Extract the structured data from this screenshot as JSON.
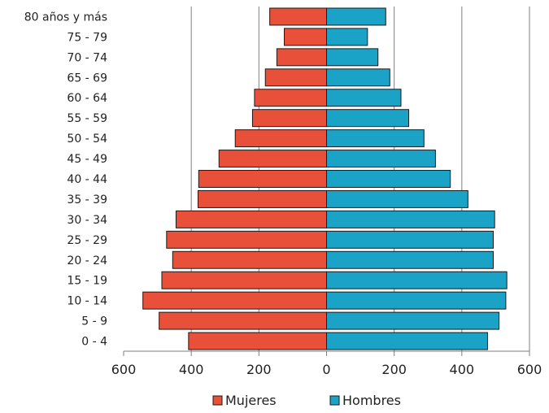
{
  "chart_data": {
    "type": "bar",
    "orientation": "horizontal",
    "layout": "population-pyramid",
    "categories": [
      "0 - 4",
      "5 - 9",
      "10 - 14",
      "15 - 19",
      "20 - 24",
      "25 - 29",
      "30 - 34",
      "35 - 39",
      "40 - 44",
      "45 - 49",
      "50 - 54",
      "55 - 59",
      "60 - 64",
      "65 - 69",
      "70 - 74",
      "75 - 79",
      "80 años y más"
    ],
    "series": [
      {
        "name": "Mujeres",
        "color": "#e8503a",
        "side": "left",
        "values": [
          408,
          495,
          543,
          487,
          455,
          473,
          445,
          380,
          378,
          318,
          270,
          219,
          213,
          181,
          147,
          125,
          168
        ]
      },
      {
        "name": "Hombres",
        "color": "#1aa3c7",
        "side": "right",
        "values": [
          476,
          510,
          530,
          533,
          493,
          493,
          497,
          418,
          366,
          322,
          288,
          243,
          220,
          187,
          152,
          121,
          175
        ]
      }
    ],
    "xlim": [
      -600,
      600
    ],
    "xticks": [
      -600,
      -400,
      -200,
      0,
      200,
      400,
      600
    ],
    "xtick_labels": [
      "600",
      "400",
      "200",
      "0",
      "200",
      "400",
      "600"
    ],
    "grid": "vertical",
    "legend_position": "bottom"
  }
}
